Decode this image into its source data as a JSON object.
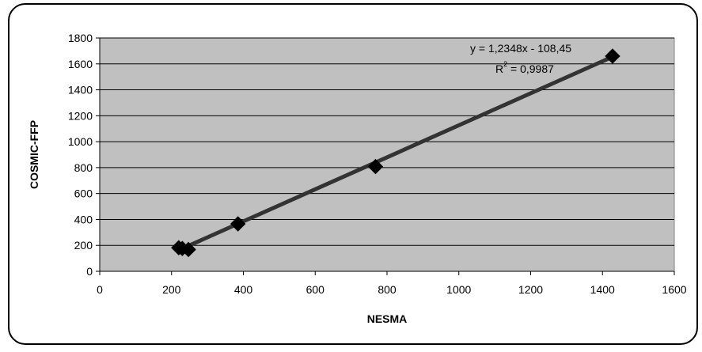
{
  "chart_data": {
    "type": "scatter",
    "xlabel": "NESMA",
    "ylabel": "COSMIC-FFP",
    "xlim": [
      0,
      1600
    ],
    "ylim": [
      0,
      1800
    ],
    "x_ticks": [
      0,
      200,
      400,
      600,
      800,
      1000,
      1200,
      1400,
      1600
    ],
    "y_ticks": [
      0,
      200,
      400,
      600,
      800,
      1000,
      1200,
      1400,
      1600,
      1800
    ],
    "x_tick_labels": [
      "0",
      "200",
      "400",
      "600",
      "800",
      "1000",
      "1200",
      "1400",
      "1600"
    ],
    "y_tick_labels": [
      "0",
      "200",
      "400",
      "600",
      "800",
      "1000",
      "1200",
      "1400",
      "1600",
      "1800"
    ],
    "grid": "horizontal",
    "series": [
      {
        "x": [
          220,
          230,
          247,
          385,
          768,
          1428
        ],
        "y": [
          182,
          176,
          168,
          366,
          808,
          1660
        ]
      }
    ],
    "trendline": {
      "slope": 1.2348,
      "intercept": -108.45,
      "x_range": [
        220,
        1428
      ]
    },
    "equation_label": "y = 1,2348x - 108,45",
    "r2_label": {
      "prefix": "R",
      "exponent": "2",
      "value": " = 0,9987"
    },
    "colors": {
      "plot_area": "#c0c0c0",
      "marker": "#000000",
      "trendline": "#333333"
    }
  }
}
